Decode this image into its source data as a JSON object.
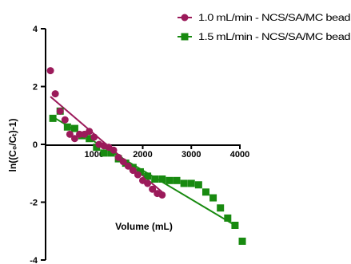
{
  "chart_data": {
    "type": "scatter",
    "title": "",
    "xlabel": "Volume (mL)",
    "ylabel": "ln((C₀/Cₜ)-1)",
    "xlim": [
      0,
      4000
    ],
    "ylim": [
      -4,
      4
    ],
    "x_ticks": [
      "1000",
      "2000",
      "3000",
      "4000"
    ],
    "y_ticks": [
      "4",
      "2",
      "0",
      "-2",
      "-4"
    ],
    "grid": false,
    "legend_position": "top-right",
    "series": [
      {
        "name": "1.0 mL/min - NCS/SA/MC bead",
        "color": "#9b1a5a",
        "marker": "circle",
        "points": [
          [
            100,
            2.55
          ],
          [
            200,
            1.75
          ],
          [
            300,
            1.15
          ],
          [
            400,
            0.85
          ],
          [
            500,
            0.35
          ],
          [
            600,
            0.2
          ],
          [
            700,
            0.35
          ],
          [
            800,
            0.35
          ],
          [
            900,
            0.45
          ],
          [
            1000,
            0.25
          ],
          [
            1100,
            0.0
          ],
          [
            1200,
            -0.05
          ],
          [
            1300,
            -0.1
          ],
          [
            1400,
            -0.2
          ],
          [
            1500,
            -0.45
          ],
          [
            1600,
            -0.6
          ],
          [
            1700,
            -0.75
          ],
          [
            1800,
            -0.9
          ],
          [
            1900,
            -1.05
          ],
          [
            2000,
            -1.25
          ],
          [
            2100,
            -1.35
          ],
          [
            2200,
            -1.55
          ],
          [
            2300,
            -1.7
          ],
          [
            2400,
            -1.75
          ]
        ],
        "fit": [
          [
            100,
            1.65
          ],
          [
            2400,
            -1.65
          ]
        ]
      },
      {
        "name": "1.5 mL/min - NCS/SA/MC bead",
        "color": "#188a10",
        "marker": "square",
        "points": [
          [
            150,
            0.9
          ],
          [
            300,
            1.15
          ],
          [
            450,
            0.6
          ],
          [
            600,
            0.55
          ],
          [
            750,
            0.3
          ],
          [
            900,
            0.2
          ],
          [
            1050,
            -0.1
          ],
          [
            1200,
            -0.3
          ],
          [
            1350,
            -0.3
          ],
          [
            1500,
            -0.5
          ],
          [
            1650,
            -0.65
          ],
          [
            1800,
            -0.8
          ],
          [
            1950,
            -0.95
          ],
          [
            2100,
            -1.1
          ],
          [
            2250,
            -1.2
          ],
          [
            2400,
            -1.2
          ],
          [
            2550,
            -1.25
          ],
          [
            2700,
            -1.25
          ],
          [
            2850,
            -1.35
          ],
          [
            3000,
            -1.35
          ],
          [
            3150,
            -1.4
          ],
          [
            3300,
            -1.65
          ],
          [
            3450,
            -1.85
          ],
          [
            3600,
            -2.2
          ],
          [
            3750,
            -2.55
          ],
          [
            3900,
            -2.8
          ],
          [
            4050,
            -3.35
          ]
        ],
        "fit": [
          [
            150,
            0.95
          ],
          [
            3950,
            -2.85
          ]
        ]
      }
    ]
  }
}
